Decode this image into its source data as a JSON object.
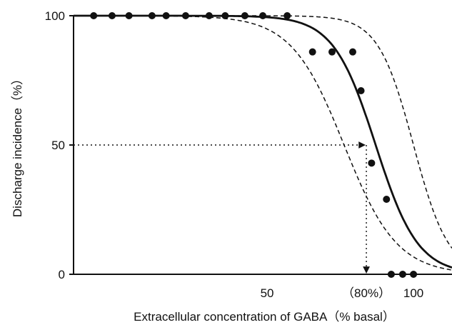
{
  "chart_data": {
    "type": "scatter",
    "xlabel": "Extracellular concentration of GABA（% basal）",
    "ylabel": "Discharge incidence（%）",
    "x_scale": "log",
    "xlim": [
      20,
      120
    ],
    "ylim": [
      0,
      100
    ],
    "x_ticks": [
      {
        "value": 50,
        "label": "50"
      },
      {
        "value": 80,
        "label": "（80%）"
      },
      {
        "value": 100,
        "label": "100"
      }
    ],
    "y_ticks": [
      {
        "value": 0,
        "label": "0"
      },
      {
        "value": 50,
        "label": "50"
      },
      {
        "value": 100,
        "label": "100"
      }
    ],
    "grid": false,
    "points": [
      {
        "x": 22,
        "y": 100
      },
      {
        "x": 24,
        "y": 100
      },
      {
        "x": 26,
        "y": 100
      },
      {
        "x": 29,
        "y": 100
      },
      {
        "x": 31,
        "y": 100
      },
      {
        "x": 34,
        "y": 100
      },
      {
        "x": 38,
        "y": 100
      },
      {
        "x": 41,
        "y": 100
      },
      {
        "x": 45,
        "y": 100
      },
      {
        "x": 49,
        "y": 100
      },
      {
        "x": 55,
        "y": 100
      },
      {
        "x": 62,
        "y": 86
      },
      {
        "x": 68,
        "y": 86
      },
      {
        "x": 75,
        "y": 86
      },
      {
        "x": 78,
        "y": 71
      },
      {
        "x": 82,
        "y": 43
      },
      {
        "x": 88,
        "y": 29
      },
      {
        "x": 90,
        "y": 0
      },
      {
        "x": 95,
        "y": 0
      },
      {
        "x": 100,
        "y": 0
      }
    ],
    "fit_curve": {
      "ec50": 83.6,
      "slope": 10,
      "style": "solid"
    },
    "confidence_curves": [
      {
        "ec50": 72,
        "slope": 8,
        "style": "dashed"
      },
      {
        "ec50": 100,
        "slope": 12,
        "style": "dashed"
      }
    ],
    "annotation": {
      "x": 80,
      "y": 50,
      "style": "dotted-arrows"
    },
    "colors": {
      "points": "#111111",
      "lines": "#111111",
      "background": "#ffffff"
    }
  }
}
